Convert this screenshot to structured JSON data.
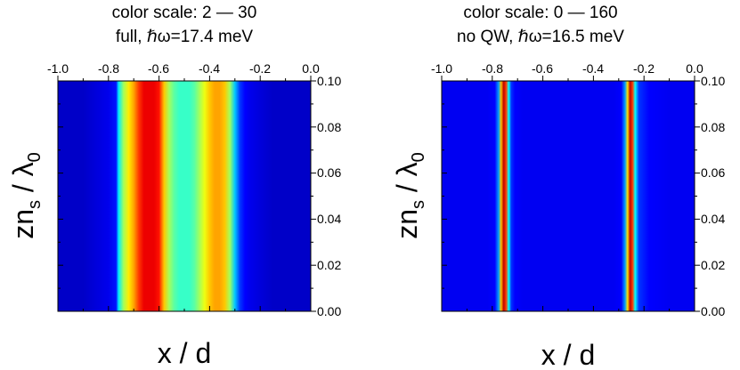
{
  "chart_data": [
    {
      "type": "heatmap",
      "title": "color scale: 2 — 30",
      "subtitle": "full, ℏω=17.4 meV",
      "xlabel": "x / d",
      "ylabel": "zn_s / λ_0",
      "xlim": [
        -1.0,
        0.0
      ],
      "ylim": [
        0.0,
        0.1
      ],
      "x_ticks": [
        "-1.0",
        "-0.8",
        "-0.6",
        "-0.4",
        "-0.2",
        "0.0"
      ],
      "y_ticks": [
        "0.00",
        "0.02",
        "0.04",
        "0.06",
        "0.08",
        "0.10"
      ],
      "color_scale": [
        2,
        30
      ],
      "colormap": "jet",
      "profile_x": [
        -1.0,
        -0.95,
        -0.9,
        -0.85,
        -0.8,
        -0.77,
        -0.76,
        -0.74,
        -0.72,
        -0.7,
        -0.68,
        -0.66,
        -0.64,
        -0.62,
        -0.6,
        -0.58,
        -0.56,
        -0.54,
        -0.52,
        -0.5,
        -0.48,
        -0.46,
        -0.44,
        -0.42,
        -0.4,
        -0.38,
        -0.36,
        -0.34,
        -0.32,
        -0.3,
        -0.28,
        -0.26,
        -0.24,
        -0.2,
        -0.15,
        -0.1,
        -0.05,
        0.0
      ],
      "profile_value": [
        4,
        4,
        4,
        4.5,
        5,
        6,
        12,
        17,
        20,
        22,
        25,
        27,
        27,
        27,
        26,
        21,
        17,
        15,
        14,
        14,
        14,
        15,
        17,
        19,
        21,
        22,
        22,
        21,
        17,
        11,
        7,
        5.5,
        5,
        4.5,
        4,
        4,
        4,
        4
      ]
    },
    {
      "type": "heatmap",
      "title": "color scale: 0 — 160",
      "subtitle": "no QW, ℏω=16.5 meV",
      "xlabel": "x / d",
      "ylabel": "zn_s / λ_0",
      "xlim": [
        -1.0,
        0.0
      ],
      "ylim": [
        0.0,
        0.1
      ],
      "x_ticks": [
        "-1.0",
        "-0.8",
        "-0.6",
        "-0.4",
        "-0.2",
        "0.0"
      ],
      "y_ticks": [
        "0.00",
        "0.02",
        "0.04",
        "0.06",
        "0.08",
        "0.10"
      ],
      "color_scale": [
        0,
        160
      ],
      "colormap": "jet",
      "profile_x": [
        -1.0,
        -0.9,
        -0.82,
        -0.79,
        -0.775,
        -0.765,
        -0.755,
        -0.745,
        -0.735,
        -0.725,
        -0.71,
        -0.68,
        -0.6,
        -0.5,
        -0.4,
        -0.32,
        -0.29,
        -0.275,
        -0.265,
        -0.255,
        -0.245,
        -0.235,
        -0.22,
        -0.18,
        -0.1,
        0.0
      ],
      "profile_value": [
        18,
        18,
        18,
        20,
        45,
        110,
        150,
        130,
        60,
        28,
        20,
        18,
        18,
        18,
        18,
        18,
        20,
        45,
        105,
        150,
        130,
        60,
        28,
        20,
        18,
        18
      ]
    }
  ]
}
